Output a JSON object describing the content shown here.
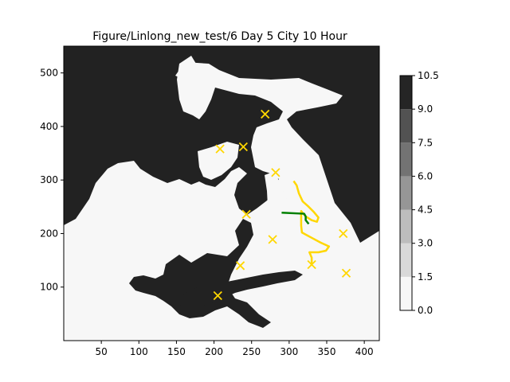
{
  "chart_data": {
    "type": "heatmap",
    "title": "Figure/Linlong_new_test/6 Day 5 City 10 Hour",
    "xlabel": "",
    "ylabel": "",
    "xlim": [
      0,
      420
    ],
    "ylim": [
      0,
      550
    ],
    "xticks": [
      50,
      100,
      150,
      200,
      250,
      300,
      350,
      400
    ],
    "yticks": [
      100,
      200,
      300,
      400,
      500
    ],
    "grid": false,
    "colorbar": {
      "levels": [
        0.0,
        1.5,
        3.0,
        4.5,
        6.0,
        7.5,
        9.0,
        10.5
      ],
      "colors": [
        "#f7f7f7",
        "#d9d9d9",
        "#bdbdbd",
        "#969696",
        "#737373",
        "#525252",
        "#252525"
      ],
      "tick_labels": [
        "0.0",
        "1.5",
        "3.0",
        "4.5",
        "6.0",
        "7.5",
        "9.0",
        "10.5"
      ]
    },
    "background_value_color": "#f7f7f7",
    "land_value_color": "#222222",
    "cities": [
      {
        "x": 268,
        "y": 423
      },
      {
        "x": 208,
        "y": 358
      },
      {
        "x": 239,
        "y": 362
      },
      {
        "x": 282,
        "y": 314
      },
      {
        "x": 243,
        "y": 236
      },
      {
        "x": 278,
        "y": 189
      },
      {
        "x": 372,
        "y": 200
      },
      {
        "x": 235,
        "y": 140
      },
      {
        "x": 330,
        "y": 142
      },
      {
        "x": 376,
        "y": 126
      },
      {
        "x": 205,
        "y": 84
      }
    ],
    "series": [
      {
        "color": "#ffd700",
        "points": [
          [
            306,
            298
          ],
          [
            310,
            290
          ],
          [
            313,
            275
          ],
          [
            318,
            260
          ],
          [
            326,
            250
          ],
          [
            333,
            240
          ],
          [
            339,
            230
          ],
          [
            337,
            222
          ],
          [
            330,
            225
          ],
          [
            322,
            232
          ],
          [
            316,
            242
          ],
          [
            316,
            215
          ],
          [
            317,
            202
          ],
          [
            330,
            192
          ],
          [
            342,
            183
          ],
          [
            353,
            176
          ],
          [
            349,
            168
          ],
          [
            339,
            165
          ],
          [
            327,
            165
          ],
          [
            330,
            155
          ],
          [
            330,
            140
          ]
        ]
      },
      {
        "color": "#008000",
        "points": [
          [
            290,
            239
          ],
          [
            320,
            237
          ],
          [
            322,
            232
          ],
          [
            322,
            225
          ],
          [
            326,
            218
          ]
        ]
      }
    ],
    "marker_color": "#ffd700"
  }
}
